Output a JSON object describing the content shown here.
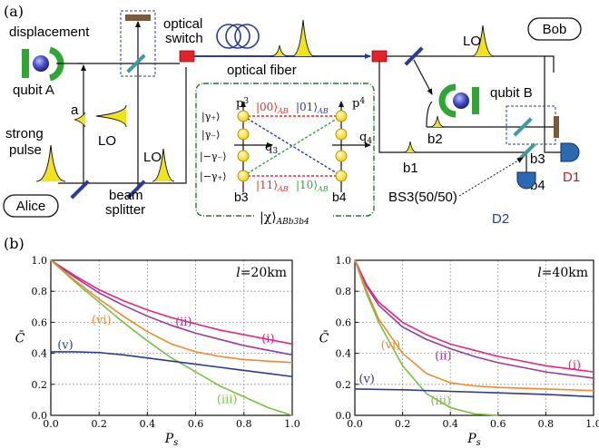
{
  "panel_a": {
    "label": "(a)",
    "alice": "Alice",
    "bob": "Bob",
    "displacement": "displacement",
    "qubit_a": "qubit A",
    "qubit_b": "qubit B",
    "strong_pulse_1": "strong",
    "strong_pulse_2": "pulse",
    "pulse_a": "a",
    "lo1": "LO",
    "lo2": "LO",
    "lo3": "LO",
    "beam_1": "beam",
    "beam_2": "splitter",
    "optical_switch_1": "optical",
    "optical_switch_2": "switch",
    "optical_fiber": "optical fiber",
    "b1": "b1",
    "b2": "b2",
    "b3": "b3",
    "b4": "b4",
    "bs3": "BS3(50/50)",
    "d1": "D1",
    "d2": "D2",
    "inset": {
      "p3": "p",
      "p3_sub": "3",
      "p4": "p",
      "p4_sub": "4",
      "q3": "q",
      "q3_sub": "3",
      "q4": "q",
      "q4_sub": "4",
      "gp": "|γ₊⟩",
      "gm": "|γ₋⟩",
      "mgm": "|−γ₋⟩",
      "mgp": "|−γ₊⟩",
      "s00": "|00⟩",
      "s01": "|01⟩",
      "s11": "|11⟩",
      "s10": "|10⟩",
      "ab": "AB",
      "b3": "b3",
      "b4": "b4",
      "chi": "|χ⟩",
      "chi_sub": "ABb3b4"
    },
    "colors": {
      "s00": "#e8312a",
      "s01": "#2b3c96",
      "s11": "#e8312a",
      "s10": "#2fa534",
      "inset_border": "#1d7a2a",
      "fiber": "#2b3c96",
      "switch": "#e2232c",
      "pulse": "#f0e21c",
      "qubit": "#4850c8",
      "d1": "#c02020",
      "d2": "#2040a0"
    }
  },
  "panel_b": {
    "label": "(b)"
  },
  "chart_data": [
    {
      "type": "line",
      "annotation": "l=20km",
      "xlabel": "P_s",
      "ylabel": "C̄",
      "xlim": [
        0,
        1
      ],
      "ylim": [
        0,
        1
      ],
      "xticks": [
        "0.0",
        "0.2",
        "0.4",
        "0.6",
        "0.8",
        "1.0"
      ],
      "yticks": [
        "0.0",
        "0.2",
        "0.4",
        "0.6",
        "0.8",
        "1.0"
      ],
      "grid": true,
      "series": [
        {
          "name": "(i)",
          "color": "#e8267d",
          "x": [
            0,
            0.1,
            0.2,
            0.3,
            0.4,
            0.5,
            0.6,
            0.7,
            0.8,
            0.9,
            1.0
          ],
          "y": [
            1.0,
            0.9,
            0.81,
            0.74,
            0.68,
            0.63,
            0.59,
            0.55,
            0.52,
            0.49,
            0.46
          ]
        },
        {
          "name": "(ii)",
          "color": "#9b3aa0",
          "x": [
            0,
            0.1,
            0.2,
            0.3,
            0.4,
            0.5,
            0.6,
            0.7,
            0.8,
            0.9,
            1.0
          ],
          "y": [
            1.0,
            0.89,
            0.79,
            0.71,
            0.64,
            0.58,
            0.53,
            0.49,
            0.45,
            0.42,
            0.39
          ]
        },
        {
          "name": "(iii)",
          "color": "#7ac142",
          "x": [
            0,
            0.1,
            0.2,
            0.3,
            0.4,
            0.5,
            0.6,
            0.7,
            0.8,
            0.9,
            1.0
          ],
          "y": [
            1.0,
            0.86,
            0.73,
            0.6,
            0.48,
            0.37,
            0.28,
            0.19,
            0.12,
            0.05,
            0.0
          ]
        },
        {
          "name": "(v)",
          "color": "#2b3c96",
          "x": [
            0,
            0.1,
            0.2,
            0.3,
            0.4,
            0.5,
            0.6,
            0.7,
            0.8,
            0.9,
            1.0
          ],
          "y": [
            0.41,
            0.41,
            0.405,
            0.39,
            0.37,
            0.35,
            0.33,
            0.31,
            0.29,
            0.27,
            0.25
          ]
        },
        {
          "name": "(vi)",
          "color": "#f08a2a",
          "x": [
            0,
            0.1,
            0.2,
            0.3,
            0.4,
            0.5,
            0.6,
            0.7,
            0.8,
            0.9,
            1.0
          ],
          "y": [
            1.0,
            0.87,
            0.75,
            0.64,
            0.54,
            0.46,
            0.41,
            0.38,
            0.36,
            0.35,
            0.34
          ]
        }
      ],
      "labels": [
        {
          "text": "(i)",
          "x": 0.9,
          "y": 0.47,
          "color": "#e8267d"
        },
        {
          "text": "(ii)",
          "x": 0.55,
          "y": 0.58,
          "color": "#9b3aa0"
        },
        {
          "text": "(iii)",
          "x": 0.73,
          "y": 0.08,
          "color": "#7ac142"
        },
        {
          "text": "(v)",
          "x": 0.06,
          "y": 0.43,
          "color": "#2b3c96"
        },
        {
          "text": "(vi)",
          "x": 0.21,
          "y": 0.59,
          "color": "#f08a2a"
        }
      ]
    },
    {
      "type": "line",
      "annotation": "l=40km",
      "xlabel": "P_s",
      "ylabel": "C̄",
      "xlim": [
        0,
        1
      ],
      "ylim": [
        0,
        1
      ],
      "xticks": [
        "0.0",
        "0.2",
        "0.4",
        "0.6",
        "0.8",
        "1.0"
      ],
      "yticks": [
        "0.0",
        "0.2",
        "0.4",
        "0.6",
        "0.8",
        "1.0"
      ],
      "grid": true,
      "series": [
        {
          "name": "(i)",
          "color": "#e8267d",
          "x": [
            0,
            0.05,
            0.1,
            0.2,
            0.3,
            0.4,
            0.5,
            0.6,
            0.7,
            0.8,
            0.9,
            1.0
          ],
          "y": [
            1.0,
            0.84,
            0.73,
            0.6,
            0.52,
            0.46,
            0.42,
            0.38,
            0.35,
            0.32,
            0.3,
            0.28
          ]
        },
        {
          "name": "(ii)",
          "color": "#9b3aa0",
          "x": [
            0,
            0.05,
            0.1,
            0.2,
            0.3,
            0.4,
            0.5,
            0.6,
            0.7,
            0.8,
            0.9,
            1.0
          ],
          "y": [
            1.0,
            0.83,
            0.71,
            0.57,
            0.49,
            0.43,
            0.38,
            0.34,
            0.31,
            0.28,
            0.26,
            0.24
          ]
        },
        {
          "name": "(iii)",
          "color": "#7ac142",
          "x": [
            0,
            0.05,
            0.1,
            0.2,
            0.3,
            0.4,
            0.5,
            0.6
          ],
          "y": [
            1.0,
            0.78,
            0.6,
            0.32,
            0.14,
            0.05,
            0.01,
            0.0
          ]
        },
        {
          "name": "(v)",
          "color": "#2b3c96",
          "x": [
            0,
            0.2,
            0.4,
            0.6,
            0.8,
            1.0
          ],
          "y": [
            0.17,
            0.165,
            0.155,
            0.145,
            0.135,
            0.12
          ]
        },
        {
          "name": "(vi)",
          "color": "#f08a2a",
          "x": [
            0,
            0.05,
            0.1,
            0.2,
            0.3,
            0.4,
            0.5,
            0.6,
            0.7,
            0.8,
            0.9,
            1.0
          ],
          "y": [
            1.0,
            0.8,
            0.62,
            0.4,
            0.27,
            0.21,
            0.19,
            0.18,
            0.175,
            0.17,
            0.165,
            0.16
          ]
        }
      ],
      "labels": [
        {
          "text": "(i)",
          "x": 0.92,
          "y": 0.3,
          "color": "#e8267d"
        },
        {
          "text": "(ii)",
          "x": 0.37,
          "y": 0.36,
          "color": "#9b3aa0"
        },
        {
          "text": "(iii)",
          "x": 0.36,
          "y": 0.07,
          "color": "#7ac142"
        },
        {
          "text": "(v)",
          "x": 0.05,
          "y": 0.21,
          "color": "#2b3c96"
        },
        {
          "text": "(vi)",
          "x": 0.15,
          "y": 0.43,
          "color": "#f08a2a"
        }
      ]
    }
  ]
}
